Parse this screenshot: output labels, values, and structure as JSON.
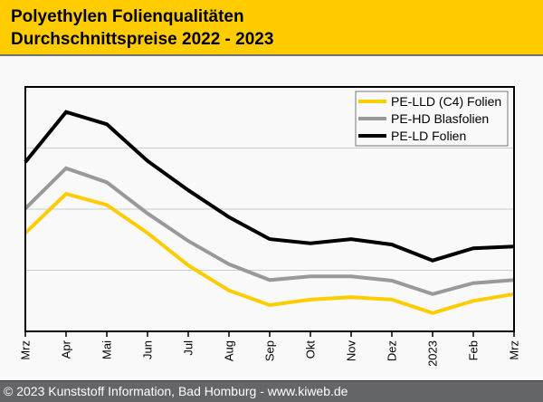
{
  "header": {
    "title_line1": "Polyethylen Folienqualitäten",
    "title_line2": "Durchschnittspreise 2022 - 2023"
  },
  "footer": {
    "text": "© 2023 Kunststoff Information, Bad Homburg - www.kiweb.de"
  },
  "colors": {
    "header_bg": "#ffcc00",
    "footer_bg": "#646569",
    "gridline": "#cccccc"
  },
  "chart_data": {
    "type": "line",
    "title": "Polyethylen Folienqualitäten Durchschnittspreise 2022 - 2023",
    "xlabel": "",
    "ylabel": "",
    "y_units_note": "no y-axis labels shown; values in gridline units",
    "ylim": [
      0,
      4
    ],
    "y_gridlines": [
      1,
      2,
      3
    ],
    "grid": true,
    "legend_position": "top-right",
    "categories": [
      "Mrz",
      "Apr",
      "Mai",
      "Jun",
      "Jul",
      "Aug",
      "Sep",
      "Okt",
      "Nov",
      "Dez",
      "2023",
      "Feb",
      "Mrz"
    ],
    "series": [
      {
        "name": "PE-LLD (C4) Folien",
        "color": "#ffcc00",
        "values": [
          1.61,
          2.25,
          2.07,
          1.61,
          1.08,
          0.67,
          0.43,
          0.52,
          0.56,
          0.52,
          0.3,
          0.5,
          0.61
        ]
      },
      {
        "name": "PE-HD Blasfolien",
        "color": "#999999",
        "values": [
          2.01,
          2.67,
          2.44,
          1.93,
          1.48,
          1.1,
          0.84,
          0.9,
          0.9,
          0.83,
          0.61,
          0.79,
          0.84
        ]
      },
      {
        "name": "PE-LD Folien",
        "color": "#000000",
        "values": [
          2.77,
          3.59,
          3.39,
          2.79,
          2.31,
          1.87,
          1.51,
          1.44,
          1.51,
          1.42,
          1.16,
          1.36,
          1.39
        ]
      }
    ]
  }
}
